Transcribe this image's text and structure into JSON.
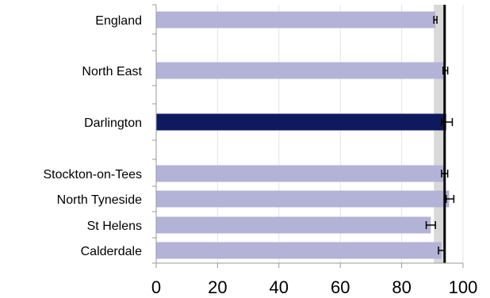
{
  "chart_data": {
    "type": "bar",
    "orientation": "horizontal",
    "categories": [
      "England",
      "North East",
      "Darlington",
      "Stockton-on-Tees",
      "North Tyneside",
      "St Helens",
      "Calderdale"
    ],
    "values": [
      91,
      94,
      94.5,
      94,
      95.5,
      89.5,
      93
    ],
    "error_low": [
      90.5,
      93.5,
      93,
      93,
      94.5,
      88,
      92
    ],
    "error_high": [
      91.5,
      95,
      96.5,
      95,
      97,
      91,
      94
    ],
    "xlim": [
      0,
      100
    ],
    "xticks": [
      0,
      20,
      40,
      60,
      80,
      100
    ],
    "highlighted": "Darlington",
    "reference_line": 94,
    "shaded_band": [
      90.5,
      94
    ],
    "grid": "vertical",
    "colors": {
      "bar": "#b3b3d7",
      "highlight": "#0f1a5e",
      "band": "#d9d9d9",
      "gridline": "#e4e4e4",
      "axis": "#999999",
      "reference": "#000000",
      "errorbar": "#000000"
    }
  }
}
